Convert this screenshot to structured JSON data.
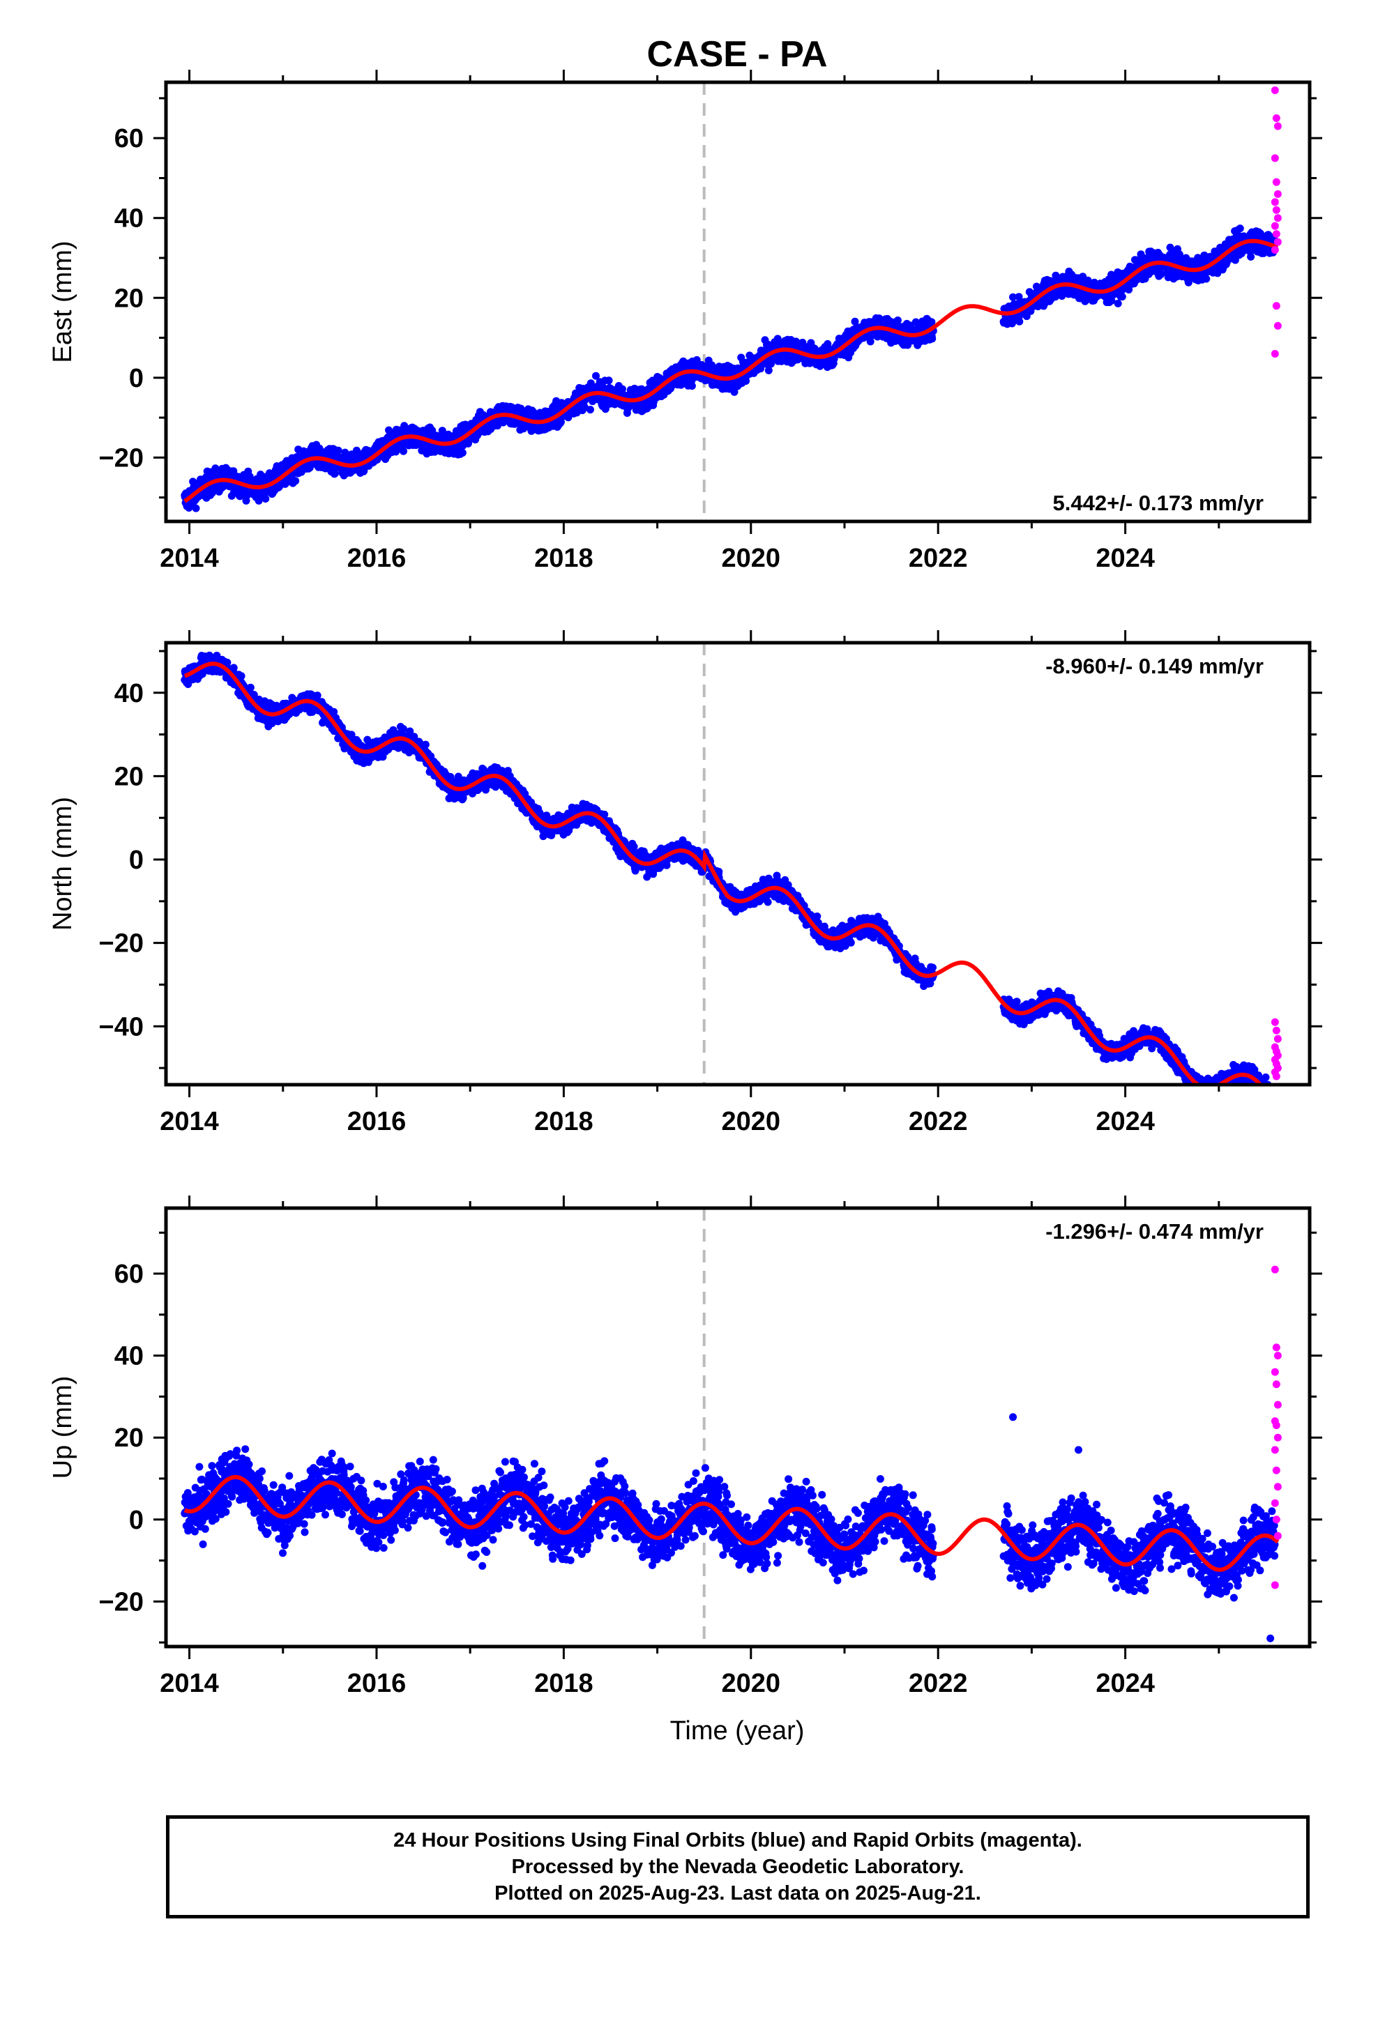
{
  "title": "CASE - PA",
  "xlabel": "Time (year)",
  "colors": {
    "final": "#0000ff",
    "rapid": "#ff00ff",
    "model": "#ff0000",
    "marker": "#bbbbbb"
  },
  "footer": {
    "line1": "24 Hour Positions Using Final Orbits (blue) and Rapid Orbits (magenta).",
    "line2": "Processed by the Nevada Geodetic Laboratory.",
    "line3": "Plotted on 2025-Aug-23. Last data on 2025-Aug-21."
  },
  "chart_data": [
    {
      "type": "scatter",
      "ylabel": "East (mm)",
      "rate_label": "5.442+/- 0.173 mm/yr",
      "rate_position": "bottom-right",
      "xlim": [
        2013.75,
        2025.97
      ],
      "ylim": [
        -36,
        74
      ],
      "xticks": [
        2014,
        2016,
        2018,
        2020,
        2022,
        2024
      ],
      "yticks": [
        -20,
        0,
        20,
        40,
        60
      ],
      "event_line_x": 2019.5,
      "final_orbit_range": [
        [
          2013.95,
          2021.95
        ],
        [
          2022.7,
          2025.6
        ]
      ],
      "rapid_orbit_x": [
        2025.6,
        2025.63
      ],
      "model": {
        "intercept": -29.5,
        "t0": 2014.0,
        "rate": 5.442,
        "annual_sin": 2.0,
        "annual_cos": -0.6,
        "break_2019_5": 0
      },
      "scatter_sigma": 1.5,
      "rapid_points": [
        72,
        65,
        63,
        55,
        49,
        46,
        44,
        42,
        40,
        38,
        36,
        34,
        32,
        18,
        13,
        6
      ],
      "series": [
        {
          "name": "Final Orbits",
          "color": "#0000ff"
        },
        {
          "name": "Rapid Orbits",
          "color": "#ff00ff"
        }
      ]
    },
    {
      "type": "scatter",
      "ylabel": "North (mm)",
      "rate_label": "-8.960+/- 0.149 mm/yr",
      "rate_position": "top-right",
      "xlim": [
        2013.75,
        2025.97
      ],
      "ylim": [
        -54,
        52
      ],
      "xticks": [
        2014,
        2016,
        2018,
        2020,
        2022,
        2024
      ],
      "yticks": [
        -40,
        -20,
        0,
        20,
        40
      ],
      "event_line_x": 2019.5,
      "final_orbit_range": [
        [
          2013.95,
          2021.95
        ],
        [
          2022.7,
          2025.6
        ]
      ],
      "rapid_orbit_x": [
        2025.6,
        2025.63
      ],
      "model": {
        "intercept": 46.0,
        "t0": 2014.0,
        "rate": -8.96,
        "annual_sin": 3.2,
        "annual_cos": -1.5,
        "break_2019_5": 5.0
      },
      "scatter_sigma": 1.2,
      "rapid_points": [
        -39,
        -41,
        -43,
        -45,
        -46,
        -47,
        -48,
        -49,
        -50,
        -51,
        -52
      ],
      "series": [
        {
          "name": "Final Orbits",
          "color": "#0000ff"
        },
        {
          "name": "Rapid Orbits",
          "color": "#ff00ff"
        }
      ]
    },
    {
      "type": "scatter",
      "ylabel": "Up (mm)",
      "rate_label": "-1.296+/- 0.474 mm/yr",
      "rate_position": "top-right",
      "xlim": [
        2013.75,
        2025.97
      ],
      "ylim": [
        -31,
        76
      ],
      "xticks": [
        2014,
        2016,
        2018,
        2020,
        2022,
        2024
      ],
      "yticks": [
        -20,
        0,
        20,
        40,
        60
      ],
      "event_line_x": 2019.5,
      "final_orbit_range": [
        [
          2013.95,
          2021.95
        ],
        [
          2022.7,
          2025.6
        ]
      ],
      "rapid_orbit_x": [
        2025.6,
        2025.63
      ],
      "model": {
        "intercept": 6.5,
        "t0": 2014.0,
        "rate": -1.296,
        "annual_sin": 0.0,
        "annual_cos": -4.5,
        "break_2019_5": 0
      },
      "scatter_sigma": 3.6,
      "outliers": [
        [
          2022.8,
          25
        ],
        [
          2025.55,
          -29
        ],
        [
          2023.5,
          17
        ]
      ],
      "rapid_points": [
        61,
        42,
        40,
        36,
        33,
        28,
        24,
        23,
        20,
        17,
        12,
        8,
        4,
        0,
        -4,
        -16
      ],
      "series": [
        {
          "name": "Final Orbits",
          "color": "#0000ff"
        },
        {
          "name": "Rapid Orbits",
          "color": "#ff00ff"
        }
      ]
    }
  ]
}
